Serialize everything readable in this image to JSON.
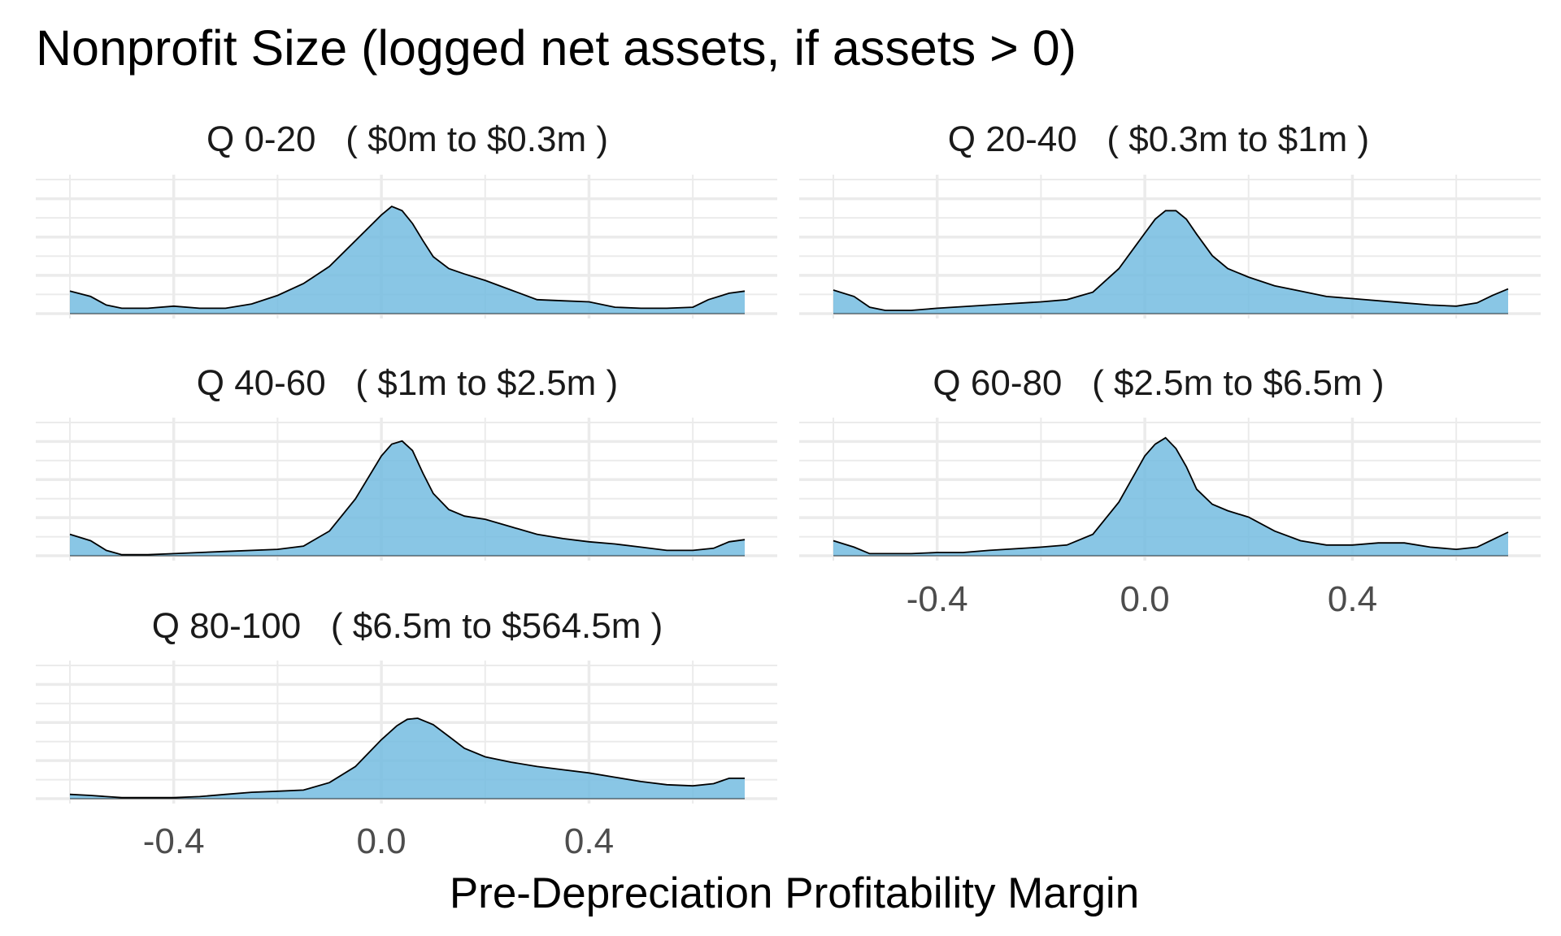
{
  "chart_data": {
    "type": "area",
    "title": "Nonprofit Size (logged net assets, if assets > 0)",
    "xlabel": "Pre-Depreciation Profitability Margin",
    "ylabel": "",
    "xlim": [
      -0.6,
      0.7
    ],
    "x_ticks": [
      -0.4,
      0.0,
      0.4
    ],
    "x_tick_labels": [
      "-0.4",
      "0.0",
      "0.4"
    ],
    "grid": true,
    "legend": "none",
    "fill_color": "#74BCE1",
    "outline_color": "#000000",
    "panels": [
      {
        "strip": "Q 0-20   ( $0m to $0.3m )",
        "x": [
          -0.6,
          -0.56,
          -0.53,
          -0.5,
          -0.45,
          -0.4,
          -0.35,
          -0.3,
          -0.25,
          -0.2,
          -0.15,
          -0.1,
          -0.05,
          0.0,
          0.02,
          0.04,
          0.06,
          0.08,
          0.1,
          0.13,
          0.16,
          0.2,
          0.25,
          0.3,
          0.35,
          0.4,
          0.45,
          0.5,
          0.55,
          0.6,
          0.63,
          0.67,
          0.7
        ],
        "values": [
          0.21,
          0.16,
          0.08,
          0.05,
          0.05,
          0.07,
          0.05,
          0.05,
          0.09,
          0.17,
          0.28,
          0.44,
          0.68,
          0.92,
          1.0,
          0.96,
          0.84,
          0.68,
          0.53,
          0.42,
          0.37,
          0.31,
          0.22,
          0.13,
          0.12,
          0.11,
          0.06,
          0.05,
          0.05,
          0.06,
          0.13,
          0.19,
          0.21
        ]
      },
      {
        "strip": "Q 20-40   ( $0.3m to $1m )",
        "x": [
          -0.6,
          -0.56,
          -0.53,
          -0.5,
          -0.45,
          -0.4,
          -0.3,
          -0.2,
          -0.15,
          -0.1,
          -0.05,
          0.0,
          0.02,
          0.04,
          0.06,
          0.08,
          0.1,
          0.13,
          0.16,
          0.2,
          0.25,
          0.3,
          0.35,
          0.4,
          0.5,
          0.55,
          0.6,
          0.64,
          0.67,
          0.7
        ],
        "values": [
          0.22,
          0.16,
          0.06,
          0.03,
          0.03,
          0.05,
          0.08,
          0.11,
          0.13,
          0.2,
          0.42,
          0.75,
          0.88,
          0.96,
          0.96,
          0.88,
          0.74,
          0.54,
          0.42,
          0.34,
          0.26,
          0.21,
          0.16,
          0.14,
          0.1,
          0.08,
          0.07,
          0.1,
          0.17,
          0.23
        ]
      },
      {
        "strip": "Q 40-60   ( $1m to $2.5m )",
        "x": [
          -0.6,
          -0.56,
          -0.53,
          -0.5,
          -0.45,
          -0.4,
          -0.35,
          -0.3,
          -0.2,
          -0.15,
          -0.1,
          -0.05,
          0.0,
          0.02,
          0.04,
          0.06,
          0.08,
          0.1,
          0.13,
          0.16,
          0.2,
          0.25,
          0.3,
          0.35,
          0.4,
          0.45,
          0.5,
          0.55,
          0.6,
          0.64,
          0.67,
          0.7
        ],
        "values": [
          0.2,
          0.14,
          0.05,
          0.01,
          0.01,
          0.02,
          0.03,
          0.04,
          0.06,
          0.09,
          0.23,
          0.53,
          0.93,
          1.04,
          1.07,
          0.98,
          0.77,
          0.58,
          0.43,
          0.37,
          0.34,
          0.27,
          0.2,
          0.16,
          0.13,
          0.11,
          0.08,
          0.05,
          0.05,
          0.07,
          0.13,
          0.15
        ]
      },
      {
        "strip": "Q 60-80   ( $2.5m to $6.5m )",
        "x": [
          -0.6,
          -0.56,
          -0.53,
          -0.5,
          -0.45,
          -0.4,
          -0.35,
          -0.3,
          -0.2,
          -0.15,
          -0.1,
          -0.05,
          0.0,
          0.02,
          0.04,
          0.06,
          0.08,
          0.1,
          0.13,
          0.16,
          0.2,
          0.25,
          0.3,
          0.35,
          0.4,
          0.45,
          0.5,
          0.55,
          0.6,
          0.64,
          0.67,
          0.7
        ],
        "values": [
          0.14,
          0.08,
          0.02,
          0.02,
          0.02,
          0.03,
          0.03,
          0.05,
          0.08,
          0.1,
          0.2,
          0.5,
          0.93,
          1.04,
          1.1,
          1.0,
          0.83,
          0.62,
          0.48,
          0.42,
          0.36,
          0.23,
          0.14,
          0.1,
          0.1,
          0.12,
          0.12,
          0.08,
          0.06,
          0.08,
          0.15,
          0.22
        ]
      },
      {
        "strip": "Q 80-100   ( $6.5m to $564.5m )",
        "x": [
          -0.6,
          -0.56,
          -0.53,
          -0.5,
          -0.45,
          -0.4,
          -0.35,
          -0.3,
          -0.25,
          -0.2,
          -0.15,
          -0.1,
          -0.05,
          0.0,
          0.03,
          0.05,
          0.07,
          0.1,
          0.13,
          0.16,
          0.2,
          0.25,
          0.3,
          0.35,
          0.4,
          0.45,
          0.5,
          0.55,
          0.6,
          0.64,
          0.67,
          0.7
        ],
        "values": [
          0.04,
          0.03,
          0.02,
          0.01,
          0.01,
          0.01,
          0.02,
          0.04,
          0.06,
          0.07,
          0.08,
          0.15,
          0.3,
          0.55,
          0.68,
          0.74,
          0.75,
          0.69,
          0.58,
          0.47,
          0.39,
          0.34,
          0.3,
          0.27,
          0.24,
          0.2,
          0.16,
          0.13,
          0.12,
          0.14,
          0.19,
          0.19
        ]
      }
    ]
  }
}
